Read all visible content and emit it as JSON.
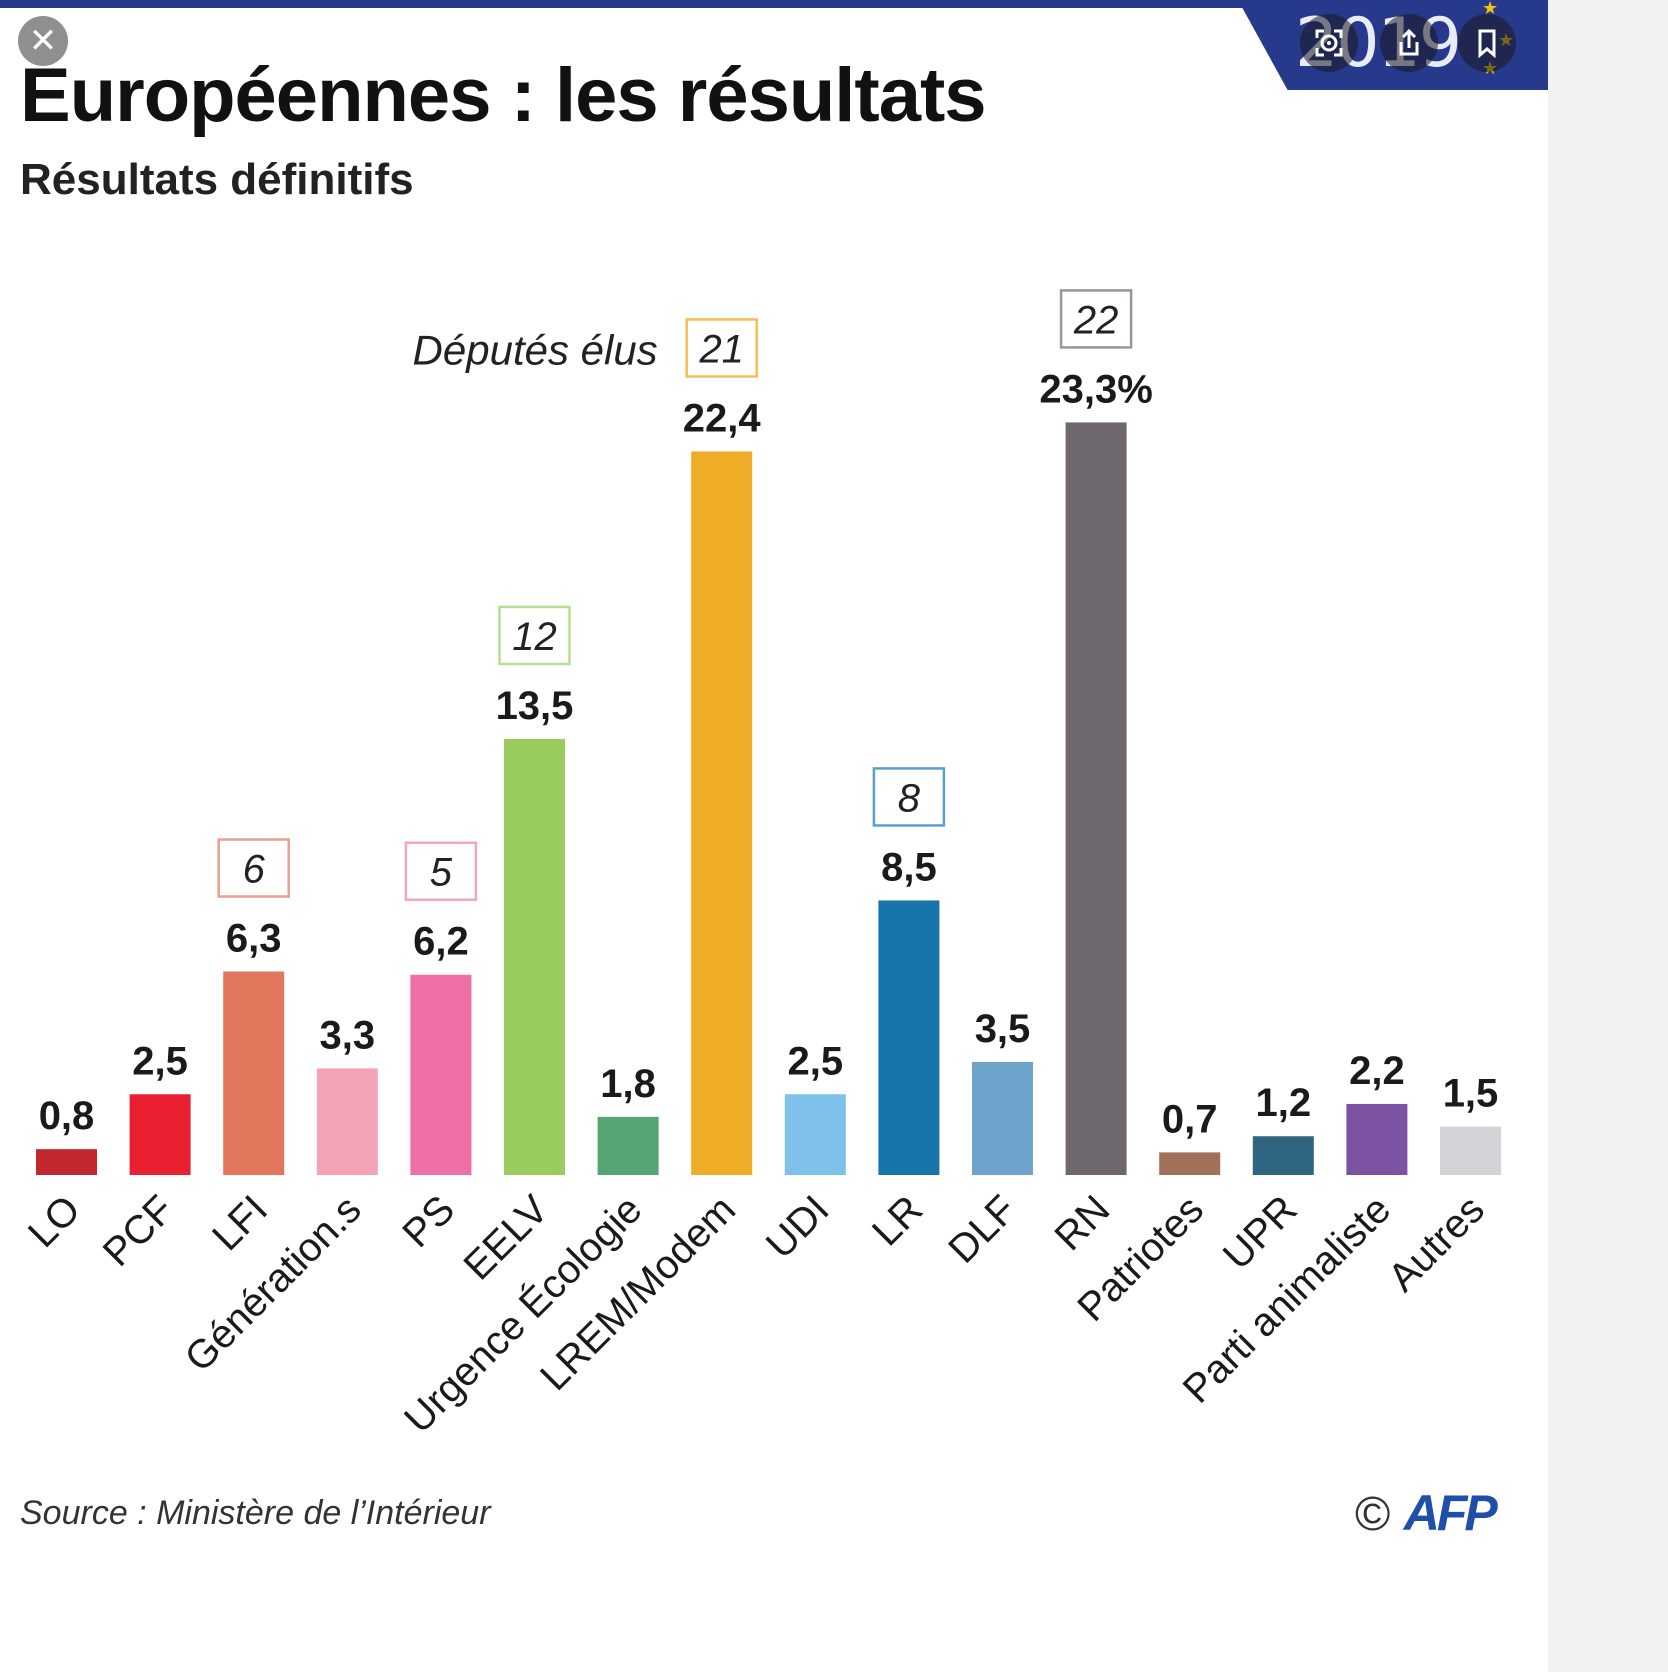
{
  "header": {
    "title": "Européennes : les résultats",
    "subtitle": "Résultats définitifs",
    "badge_year": "2019"
  },
  "overlay": {
    "close_icon": "✕",
    "lens_icon": "lens-icon",
    "share_icon": "share-icon",
    "bookmark_icon": "bookmark-icon"
  },
  "chart_data": {
    "type": "bar",
    "title": "Européennes : les résultats",
    "subtitle": "Résultats définitifs",
    "seats_label": "Députés élus",
    "unit_suffix": "%",
    "ylim": [
      0,
      25
    ],
    "categories": [
      "LO",
      "PCF",
      "LFI",
      "Génération.s",
      "PS",
      "EELV",
      "Urgence Écologie",
      "LREM/Modem",
      "UDI",
      "LR",
      "DLF",
      "RN",
      "Patriotes",
      "UPR",
      "Parti animaliste",
      "Autres"
    ],
    "values": [
      0.8,
      2.5,
      6.3,
      3.3,
      6.2,
      13.5,
      1.8,
      22.4,
      2.5,
      8.5,
      3.5,
      23.3,
      0.7,
      1.2,
      2.2,
      1.5
    ],
    "value_labels": [
      "0,8",
      "2,5",
      "6,3",
      "3,3",
      "6,2",
      "13,5",
      "1,8",
      "22,4",
      "2,5",
      "8,5",
      "3,5",
      "23,3%",
      "0,7",
      "1,2",
      "2,2",
      "1,5"
    ],
    "seats": [
      null,
      null,
      6,
      null,
      5,
      12,
      null,
      21,
      null,
      8,
      null,
      22,
      null,
      null,
      null,
      null
    ],
    "colors": [
      "#c0282d",
      "#e8202f",
      "#e2765c",
      "#f4a3b6",
      "#ef6fa8",
      "#99cc5e",
      "#55a474",
      "#eeac27",
      "#7ec1ea",
      "#1775aa",
      "#6ea4cb",
      "#6e676e",
      "#a26f58",
      "#2f6581",
      "#7c52a3",
      "#d1d3d6"
    ],
    "seat_box_colors": [
      null,
      null,
      "#e8a08f",
      null,
      "#f2a6c0",
      "#b7df91",
      null,
      "#f5bd52",
      null,
      "#5aa0c9",
      null,
      "#9a959a",
      null,
      null,
      null,
      null
    ]
  },
  "footer": {
    "source": "Source : Ministère de l’Intérieur",
    "copyright": "©",
    "logo_text": "AFP"
  }
}
